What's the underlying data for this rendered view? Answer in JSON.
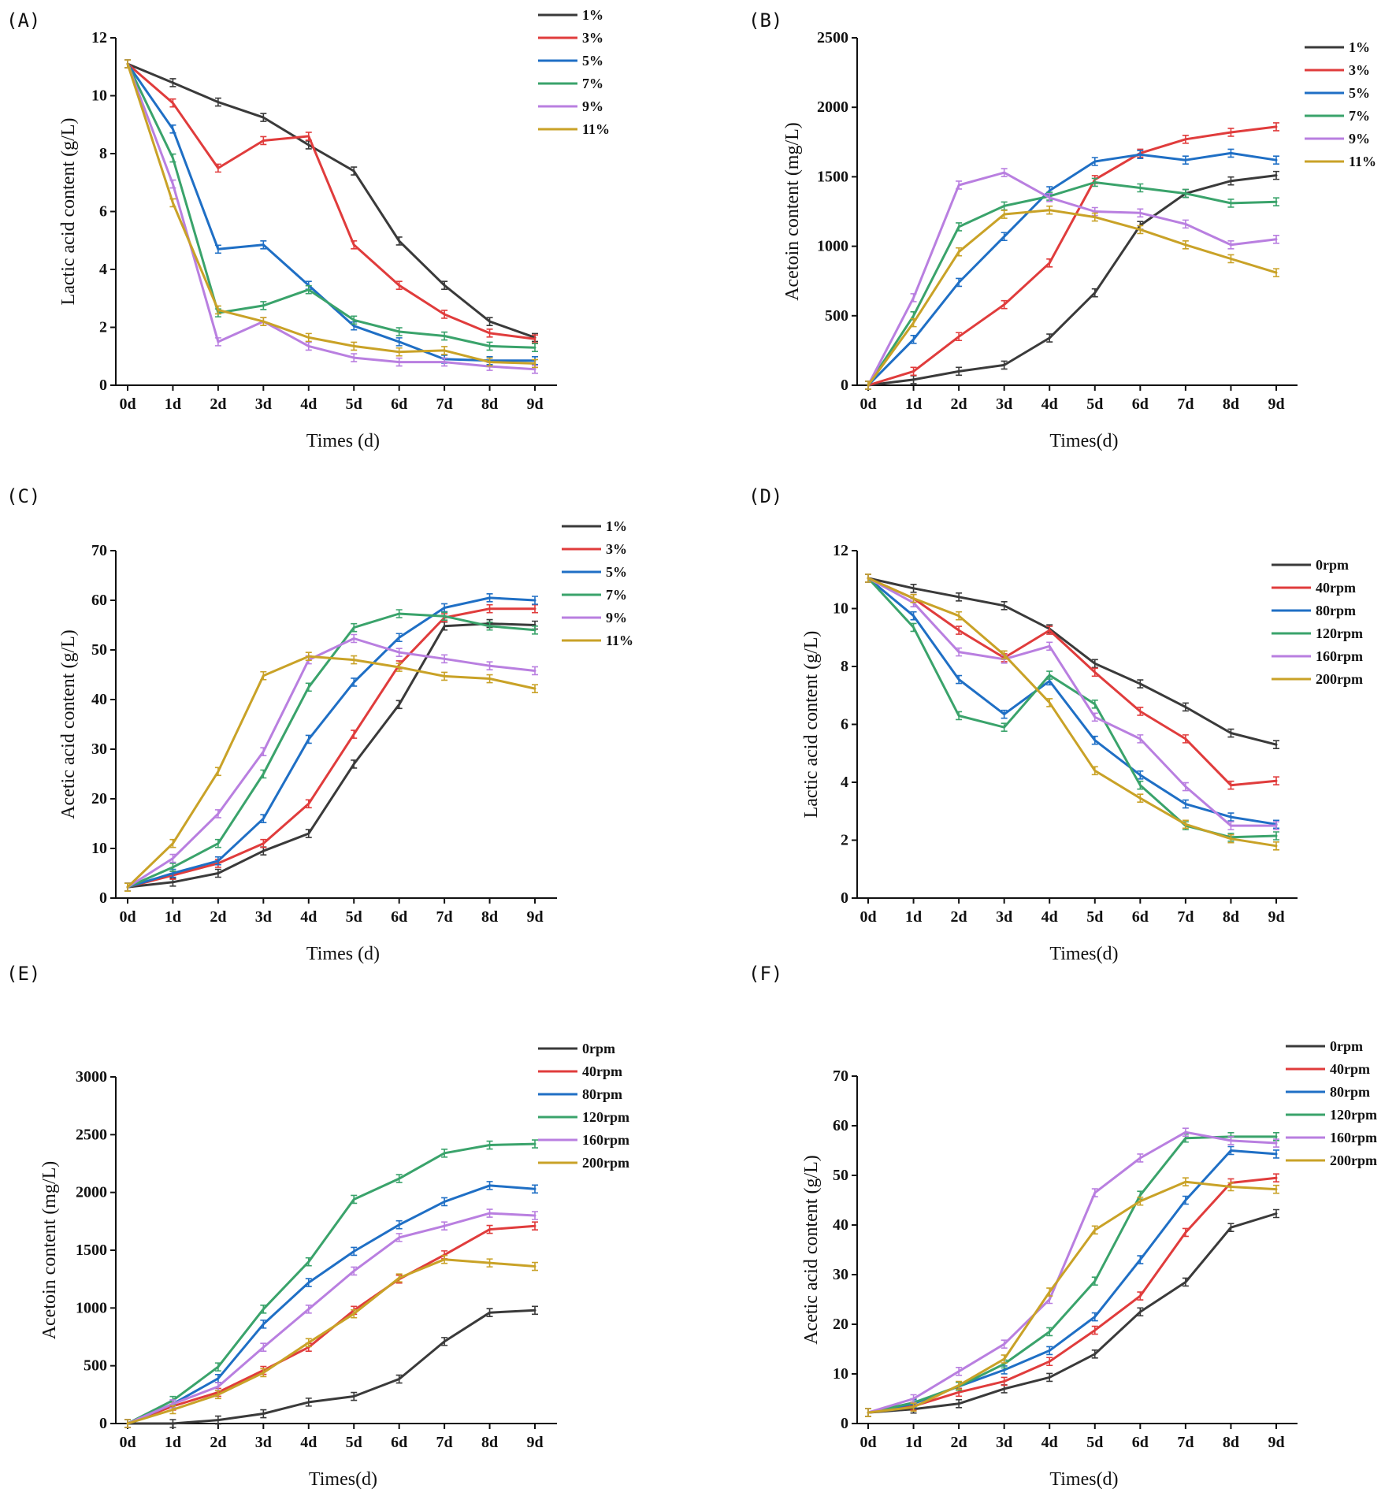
{
  "chart_data": [
    {
      "panel_label": "(A)",
      "type": "line",
      "xlabel": "Times (d)",
      "ylabel": "Lactic acid content (g/L)",
      "categories": [
        "0d",
        "1d",
        "2d",
        "3d",
        "4d",
        "5d",
        "6d",
        "7d",
        "8d",
        "9d"
      ],
      "ylim": [
        0,
        12
      ],
      "y_ticks": [
        "0",
        "2",
        "4",
        "6",
        "8",
        "10",
        "12"
      ],
      "series": [
        {
          "name": "1%",
          "color": "#3a3a3a",
          "values": [
            11.1,
            10.45,
            9.78,
            9.25,
            8.3,
            7.4,
            4.98,
            3.45,
            2.2,
            1.65
          ]
        },
        {
          "name": "3%",
          "color": "#e03c3c",
          "values": [
            11.1,
            9.75,
            7.5,
            8.45,
            8.6,
            4.85,
            3.45,
            2.45,
            1.8,
            1.6
          ]
        },
        {
          "name": "5%",
          "color": "#1f6fc5",
          "values": [
            11.1,
            8.85,
            4.7,
            4.85,
            3.45,
            2.05,
            1.5,
            0.9,
            0.85,
            0.85
          ]
        },
        {
          "name": "7%",
          "color": "#3aa36b",
          "values": [
            11.1,
            7.85,
            2.5,
            2.75,
            3.3,
            2.25,
            1.85,
            1.7,
            1.35,
            1.3
          ]
        },
        {
          "name": "9%",
          "color": "#b97fe0",
          "values": [
            11.1,
            6.95,
            1.5,
            2.2,
            1.35,
            0.95,
            0.8,
            0.8,
            0.65,
            0.55
          ]
        },
        {
          "name": "11%",
          "color": "#c9a227",
          "values": [
            11.1,
            6.3,
            2.6,
            2.2,
            1.65,
            1.35,
            1.15,
            1.2,
            0.8,
            0.75
          ]
        }
      ]
    },
    {
      "panel_label": "(B)",
      "type": "line",
      "xlabel": "Times(d)",
      "ylabel": "Acetoin content (mg/L)",
      "categories": [
        "0d",
        "1d",
        "2d",
        "3d",
        "4d",
        "5d",
        "6d",
        "7d",
        "8d",
        "9d"
      ],
      "ylim": [
        0,
        2500
      ],
      "y_ticks": [
        "0",
        "500",
        "1000",
        "1500",
        "2000",
        "2500"
      ],
      "series": [
        {
          "name": "1%",
          "color": "#3a3a3a",
          "values": [
            0,
            40,
            100,
            145,
            340,
            665,
            1150,
            1380,
            1470,
            1510
          ]
        },
        {
          "name": "3%",
          "color": "#e03c3c",
          "values": [
            0,
            100,
            350,
            580,
            880,
            1480,
            1670,
            1770,
            1820,
            1860
          ]
        },
        {
          "name": "5%",
          "color": "#1f6fc5",
          "values": [
            0,
            330,
            740,
            1070,
            1400,
            1610,
            1660,
            1620,
            1670,
            1620
          ]
        },
        {
          "name": "7%",
          "color": "#3aa36b",
          "values": [
            0,
            500,
            1140,
            1290,
            1360,
            1460,
            1420,
            1380,
            1310,
            1320
          ]
        },
        {
          "name": "9%",
          "color": "#b97fe0",
          "values": [
            0,
            630,
            1440,
            1530,
            1350,
            1250,
            1240,
            1160,
            1010,
            1050
          ]
        },
        {
          "name": "11%",
          "color": "#c9a227",
          "values": [
            0,
            450,
            960,
            1230,
            1260,
            1210,
            1120,
            1010,
            910,
            810
          ]
        }
      ]
    },
    {
      "panel_label": "(C)",
      "type": "line",
      "xlabel": "Times (d)",
      "ylabel": "Acetic acid content (g/L)",
      "categories": [
        "0d",
        "1d",
        "2d",
        "3d",
        "4d",
        "5d",
        "6d",
        "7d",
        "8d",
        "9d"
      ],
      "ylim": [
        0,
        70
      ],
      "y_ticks": [
        "0",
        "10",
        "20",
        "30",
        "40",
        "50",
        "60",
        "70"
      ],
      "series": [
        {
          "name": "1%",
          "color": "#3a3a3a",
          "values": [
            2.2,
            3.2,
            5,
            9.5,
            13,
            27,
            39,
            54.8,
            55.3,
            55
          ]
        },
        {
          "name": "3%",
          "color": "#e03c3c",
          "values": [
            2.2,
            4.6,
            7,
            11,
            19,
            33,
            47,
            56.5,
            58.3,
            58.3
          ]
        },
        {
          "name": "5%",
          "color": "#1f6fc5",
          "values": [
            2.2,
            5,
            7.5,
            16,
            32,
            43.5,
            52.5,
            58.5,
            60.5,
            60
          ]
        },
        {
          "name": "7%",
          "color": "#3aa36b",
          "values": [
            2.2,
            6.2,
            11,
            25,
            42.5,
            54.5,
            57.3,
            56.8,
            54.8,
            54
          ]
        },
        {
          "name": "9%",
          "color": "#b97fe0",
          "values": [
            2.2,
            8,
            17,
            29.5,
            48,
            52.3,
            49.5,
            48.2,
            46.8,
            45.8
          ]
        },
        {
          "name": "11%",
          "color": "#c9a227",
          "values": [
            2.2,
            11,
            25.5,
            44.8,
            48.7,
            48,
            46.5,
            44.7,
            44.2,
            42.2
          ]
        }
      ]
    },
    {
      "panel_label": "(D)",
      "type": "line",
      "xlabel": "Times(d)",
      "ylabel": "Lactic acid content (g/L)",
      "categories": [
        "0d",
        "1d",
        "2d",
        "3d",
        "4d",
        "5d",
        "6d",
        "7d",
        "8d",
        "9d"
      ],
      "ylim": [
        0,
        12
      ],
      "y_ticks": [
        "0",
        "2",
        "4",
        "6",
        "8",
        "10",
        "12"
      ],
      "series": [
        {
          "name": "0rpm",
          "color": "#3a3a3a",
          "values": [
            11.05,
            10.7,
            10.4,
            10.1,
            9.3,
            8.1,
            7.4,
            6.6,
            5.7,
            5.3
          ]
        },
        {
          "name": "40rpm",
          "color": "#e03c3c",
          "values": [
            11.05,
            10.35,
            9.25,
            8.3,
            9.25,
            7.8,
            6.45,
            5.5,
            3.9,
            4.05
          ]
        },
        {
          "name": "80rpm",
          "color": "#1f6fc5",
          "values": [
            11.05,
            9.75,
            7.55,
            6.35,
            7.5,
            5.45,
            4.25,
            3.25,
            2.8,
            2.55
          ]
        },
        {
          "name": "120rpm",
          "color": "#3aa36b",
          "values": [
            11.05,
            9.35,
            6.3,
            5.9,
            7.7,
            6.7,
            3.9,
            2.5,
            2.1,
            2.15
          ]
        },
        {
          "name": "160rpm",
          "color": "#b97fe0",
          "values": [
            11.05,
            10.2,
            8.5,
            8.25,
            8.7,
            6.25,
            5.5,
            3.85,
            2.5,
            2.5
          ]
        },
        {
          "name": "200rpm",
          "color": "#c9a227",
          "values": [
            11.05,
            10.35,
            9.75,
            8.4,
            6.75,
            4.4,
            3.45,
            2.55,
            2.05,
            1.8
          ]
        }
      ]
    },
    {
      "panel_label": "(E)",
      "type": "line",
      "xlabel": "Times(d)",
      "ylabel": "Acetoin content (mg/L)",
      "categories": [
        "0d",
        "1d",
        "2d",
        "3d",
        "4d",
        "5d",
        "6d",
        "7d",
        "8d",
        "9d"
      ],
      "ylim": [
        0,
        3000
      ],
      "y_ticks": [
        "0",
        "500",
        "1000",
        "1500",
        "2000",
        "2500",
        "3000"
      ],
      "series": [
        {
          "name": "0rpm",
          "color": "#3a3a3a",
          "values": [
            0,
            0,
            30,
            85,
            185,
            235,
            385,
            710,
            960,
            980
          ]
        },
        {
          "name": "40rpm",
          "color": "#e03c3c",
          "values": [
            0,
            150,
            270,
            460,
            660,
            980,
            1250,
            1460,
            1680,
            1710
          ]
        },
        {
          "name": "80rpm",
          "color": "#1f6fc5",
          "values": [
            0,
            170,
            390,
            860,
            1220,
            1490,
            1720,
            1920,
            2060,
            2030
          ]
        },
        {
          "name": "120rpm",
          "color": "#3aa36b",
          "values": [
            0,
            200,
            490,
            990,
            1400,
            1940,
            2120,
            2340,
            2410,
            2420
          ]
        },
        {
          "name": "160rpm",
          "color": "#b97fe0",
          "values": [
            0,
            170,
            320,
            660,
            990,
            1320,
            1610,
            1710,
            1820,
            1800
          ]
        },
        {
          "name": "200rpm",
          "color": "#c9a227",
          "values": [
            0,
            120,
            250,
            440,
            700,
            950,
            1260,
            1420,
            1390,
            1360
          ]
        }
      ]
    },
    {
      "panel_label": "(F)",
      "type": "line",
      "xlabel": "Times(d)",
      "ylabel": "Acetic acid content (g/L)",
      "categories": [
        "0d",
        "1d",
        "2d",
        "3d",
        "4d",
        "5d",
        "6d",
        "7d",
        "8d",
        "9d"
      ],
      "ylim": [
        0,
        70
      ],
      "y_ticks": [
        "0",
        "10",
        "20",
        "30",
        "40",
        "50",
        "60",
        "70"
      ],
      "series": [
        {
          "name": "0rpm",
          "color": "#3a3a3a",
          "values": [
            2.2,
            2.9,
            4,
            7,
            9.3,
            14,
            22.5,
            28.5,
            39.5,
            42.3
          ]
        },
        {
          "name": "40rpm",
          "color": "#e03c3c",
          "values": [
            2.2,
            3.5,
            6.3,
            8.5,
            12.5,
            18.8,
            25.7,
            38.5,
            48.5,
            49.5
          ]
        },
        {
          "name": "80rpm",
          "color": "#1f6fc5",
          "values": [
            2.2,
            4,
            7.5,
            10.8,
            14.7,
            21.5,
            33,
            45,
            55,
            54.3
          ]
        },
        {
          "name": "120rpm",
          "color": "#3aa36b",
          "values": [
            2.2,
            4.2,
            7.5,
            12,
            18.5,
            28.7,
            46,
            57.5,
            57.8,
            57.8
          ]
        },
        {
          "name": "160rpm",
          "color": "#b97fe0",
          "values": [
            2.2,
            5,
            10.5,
            16,
            25,
            46.5,
            53.5,
            58.7,
            57,
            56.5
          ]
        },
        {
          "name": "200rpm",
          "color": "#c9a227",
          "values": [
            2.2,
            3.3,
            7.7,
            13,
            26.5,
            39,
            44.8,
            48.7,
            47.7,
            47.2
          ]
        }
      ]
    }
  ]
}
